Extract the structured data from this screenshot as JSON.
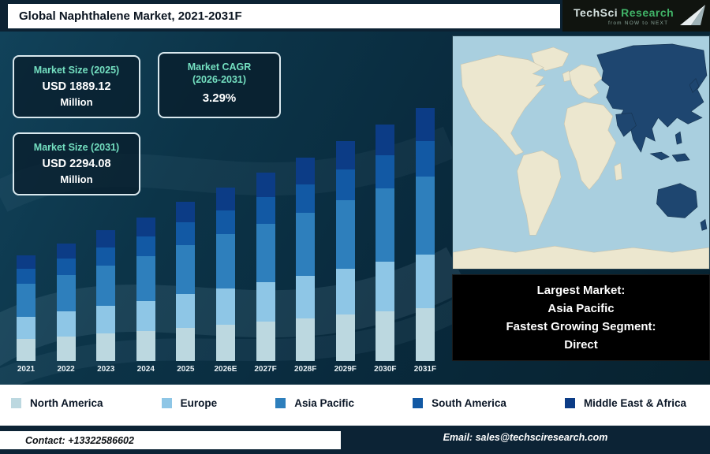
{
  "header": {
    "title": "Global Naphthalene Market, 2021-2031F",
    "logo": {
      "part1": "TechSci",
      "part2": "Research",
      "tagline": "from NOW to NEXT"
    }
  },
  "info_boxes": {
    "size_2025": {
      "label": "Market Size (2025)",
      "value": "USD 1889.12",
      "unit": "Million"
    },
    "cagr": {
      "line1": "Market CAGR",
      "line2": "(2026-2031)",
      "value": "3.29%"
    },
    "size_2031": {
      "label": "Market Size (2031)",
      "value": "USD 2294.08",
      "unit": "Million"
    }
  },
  "highlight_box": {
    "line1": "Largest Market:",
    "line2": "Asia Pacific",
    "line3": "Fastest Growing Segment:",
    "line4": "Direct"
  },
  "map": {
    "highlighted_region": "Asia Pacific",
    "sea_color": "#a9cfdf",
    "land_color": "#ece7cf",
    "highlight_color": "#1e4670"
  },
  "footer": {
    "contact": "Contact: +13322586602",
    "email": "Email: sales@techsciresearch.com"
  },
  "chart_data": {
    "type": "bar",
    "stacked": true,
    "title": "Global Naphthalene Market, 2021-2031F",
    "unit": "USD Million",
    "categories": [
      "2021",
      "2022",
      "2023",
      "2024",
      "2025",
      "2026E",
      "2027F",
      "2028F",
      "2029F",
      "2030F",
      "2031F"
    ],
    "series": [
      {
        "name": "North America",
        "color": "#bcd8e0",
        "values": [
          348,
          359,
          371,
          382,
          397,
          410,
          423,
          437,
          452,
          467,
          482
        ]
      },
      {
        "name": "Europe",
        "color": "#8ec6e6",
        "values": [
          348,
          359,
          371,
          382,
          397,
          410,
          423,
          437,
          452,
          467,
          482
        ]
      },
      {
        "name": "Asia Pacific",
        "color": "#2e7fbc",
        "values": [
          513,
          530,
          547,
          564,
          586,
          605,
          624,
          645,
          667,
          689,
          711
        ]
      },
      {
        "name": "South America",
        "color": "#1259a4",
        "values": [
          232,
          239,
          247,
          255,
          264,
          273,
          282,
          291,
          301,
          311,
          321
        ]
      },
      {
        "name": "Middle East & Africa",
        "color": "#0c3c86",
        "values": [
          215,
          222,
          229,
          237,
          246,
          254,
          262,
          271,
          280,
          289,
          298
        ]
      }
    ],
    "totals_labeled": {
      "2025": 1889.12,
      "2031F": 2294.08
    },
    "ylim": [
      0,
      2400
    ],
    "grid": false,
    "legend_position": "bottom",
    "notes": "Segment values estimated from bar proportions; 2025 and 2031 totals are labeled on the infographic."
  }
}
